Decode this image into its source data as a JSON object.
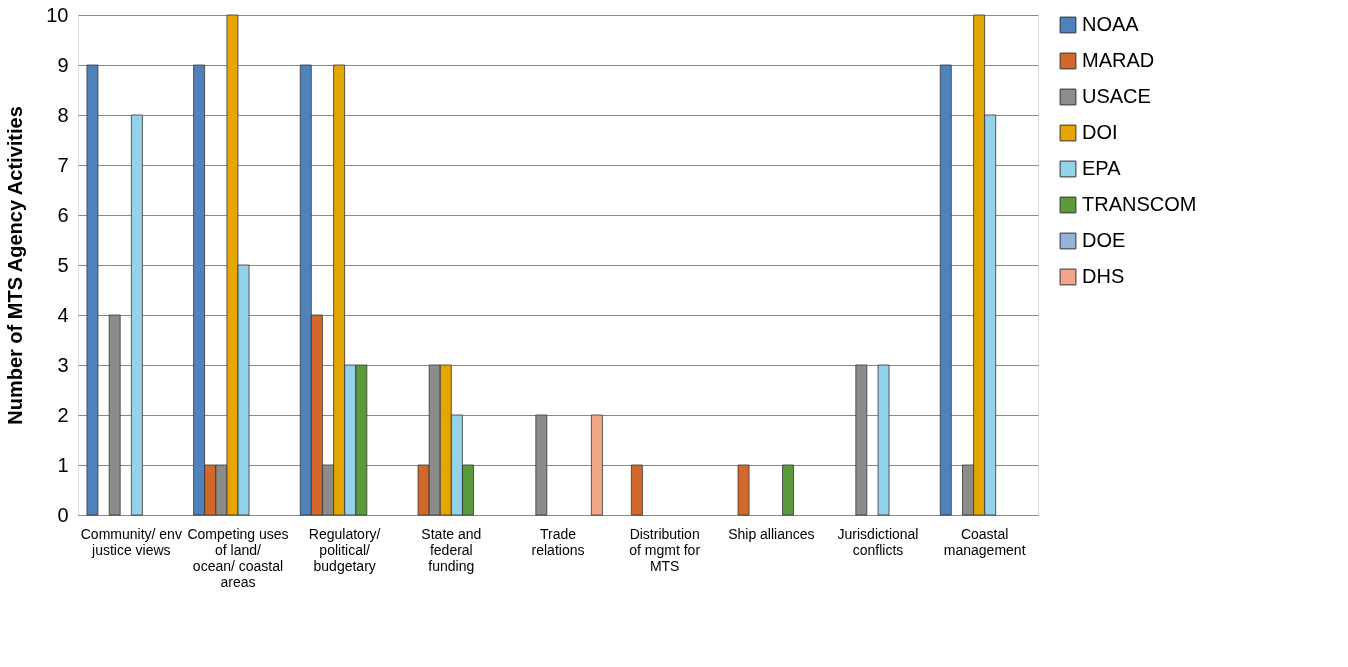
{
  "chart_data": {
    "type": "bar",
    "ylabel": "Number of MTS Agency Activities",
    "categories": [
      "Community/ env justice views",
      "Competing uses of land/ ocean/ coastal areas",
      "Regulatory/ political/ budgetary",
      "State and federal funding",
      "Trade relations",
      "Distribution of mgmt for MTS",
      "Ship alliances",
      "Jurisdictional conflicts",
      "Coastal management"
    ],
    "series": [
      {
        "name": "NOAA",
        "color": "#4f81bd",
        "values": [
          9,
          9,
          9,
          null,
          null,
          null,
          null,
          null,
          9
        ]
      },
      {
        "name": "MARAD",
        "color": "#d2692a",
        "values": [
          null,
          1,
          4,
          1,
          null,
          1,
          1,
          null,
          null
        ]
      },
      {
        "name": "USACE",
        "color": "#8c8c8c",
        "values": [
          4,
          1,
          1,
          3,
          2,
          null,
          null,
          3,
          1
        ]
      },
      {
        "name": "DOI",
        "color": "#e6a600",
        "values": [
          null,
          10,
          9,
          3,
          null,
          null,
          null,
          null,
          10
        ]
      },
      {
        "name": "EPA",
        "color": "#93d2e8",
        "values": [
          8,
          5,
          3,
          2,
          null,
          null,
          null,
          3,
          8
        ]
      },
      {
        "name": "TRANSCOM",
        "color": "#5b9a3c",
        "values": [
          null,
          null,
          3,
          1,
          null,
          null,
          1,
          null,
          null
        ]
      },
      {
        "name": "DOE",
        "color": "#95b3d7",
        "values": [
          null,
          null,
          null,
          null,
          null,
          null,
          null,
          null,
          null
        ]
      },
      {
        "name": "DHS",
        "color": "#f2a68a",
        "values": [
          null,
          null,
          null,
          null,
          2,
          null,
          null,
          null,
          null
        ]
      }
    ],
    "ylim": [
      0,
      10
    ],
    "yticks": [
      0,
      1,
      2,
      3,
      4,
      5,
      6,
      7,
      8,
      9,
      10
    ],
    "grid": "y",
    "legend": "right"
  }
}
